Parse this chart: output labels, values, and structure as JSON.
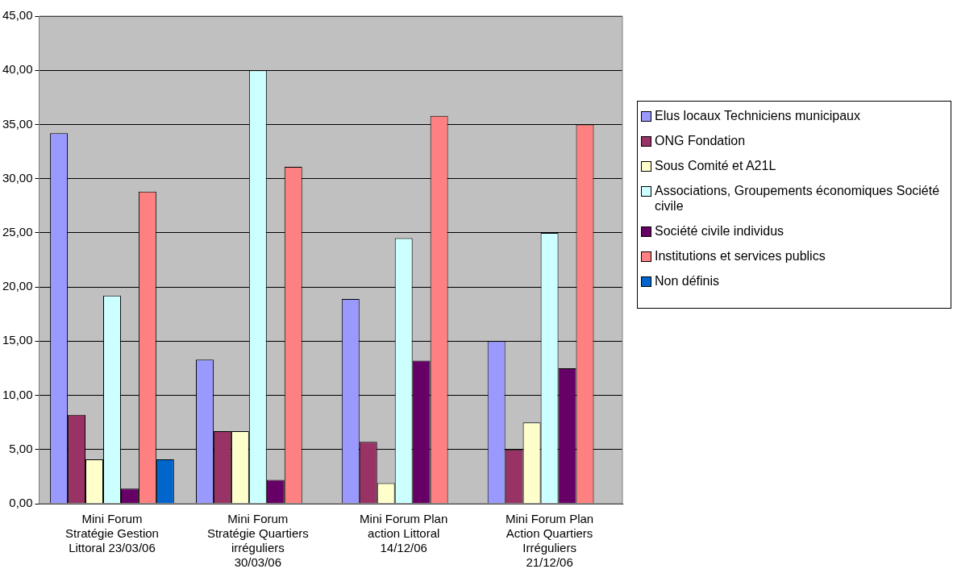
{
  "chart_data": {
    "type": "bar",
    "categories": [
      "Mini Forum Stratégie Gestion Littoral 23/03/06",
      "Mini Forum Stratégie Quartiers irréguliers 30/03/06",
      "Mini Forum Plan action Littoral 14/12/06",
      "Mini Forum Plan Action Quartiers Irréguliers 21/12/06"
    ],
    "series": [
      {
        "name": "Elus locaux Techniciens municipaux",
        "color": "#9999ff",
        "values": [
          34.2,
          13.3,
          18.9,
          15.0
        ]
      },
      {
        "name": "ONG Fondation",
        "color": "#993366",
        "values": [
          8.2,
          6.7,
          5.7,
          5.0
        ]
      },
      {
        "name": "Sous Comité et A21L",
        "color": "#ffffcc",
        "values": [
          4.1,
          6.7,
          1.9,
          7.5
        ]
      },
      {
        "name": "Associations, Groupements économiques Société civile",
        "color": "#ccffff",
        "values": [
          19.2,
          40.0,
          24.5,
          25.0
        ]
      },
      {
        "name": "Société civile individus",
        "color": "#660066",
        "values": [
          1.4,
          2.2,
          13.2,
          12.5
        ]
      },
      {
        "name": "Institutions et services publics",
        "color": "#ff8080",
        "values": [
          28.8,
          31.1,
          35.8,
          35.0
        ]
      },
      {
        "name": "Non définis",
        "color": "#0066cc",
        "values": [
          4.1,
          0,
          0,
          0
        ]
      }
    ],
    "ylim": [
      0,
      45
    ],
    "yticks": [
      {
        "value": 0,
        "label": "0,00"
      },
      {
        "value": 5,
        "label": "5,00"
      },
      {
        "value": 10,
        "label": "10,00"
      },
      {
        "value": 15,
        "label": "15,00"
      },
      {
        "value": 20,
        "label": "20,00"
      },
      {
        "value": 25,
        "label": "25,00"
      },
      {
        "value": 30,
        "label": "30,00"
      },
      {
        "value": 35,
        "label": "35,00"
      },
      {
        "value": 40,
        "label": "40,00"
      },
      {
        "value": 45,
        "label": "45,00"
      }
    ],
    "grid": "y",
    "legend": "right"
  }
}
